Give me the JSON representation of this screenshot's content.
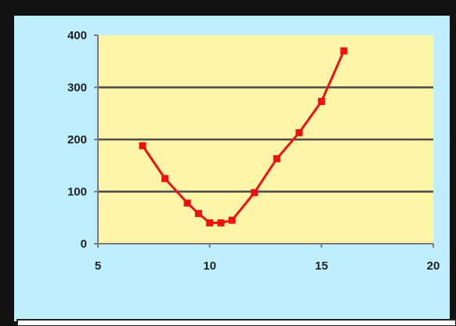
{
  "colors": {
    "outer_border": "#111111",
    "chart_area_bg": "#bfeeff",
    "plot_area_bg": "#fff5a8",
    "gridline": "#4a4a4a",
    "axis": "#7a7a7a",
    "series": "#ee1111",
    "bottom_strip_border": "#222222"
  },
  "chart_data": {
    "type": "line",
    "title": "",
    "xlabel": "",
    "ylabel": "",
    "xlim": [
      5,
      20
    ],
    "ylim": [
      0,
      400
    ],
    "x_ticks": [
      5,
      10,
      15,
      20
    ],
    "y_ticks": [
      0,
      100,
      200,
      300,
      400
    ],
    "x_tick_labels": [
      "5",
      "10",
      "15",
      "20"
    ],
    "y_tick_labels": [
      "0",
      "100",
      "200",
      "300",
      "400"
    ],
    "grid": "horizontal",
    "legend": "none",
    "marker": "square",
    "series": [
      {
        "x": [
          7,
          8,
          9,
          9.5,
          10,
          10.5,
          11,
          12,
          13,
          14,
          15,
          16
        ],
        "y": [
          188,
          125,
          78,
          58,
          40,
          40,
          45,
          98,
          163,
          213,
          273,
          370
        ]
      }
    ]
  }
}
